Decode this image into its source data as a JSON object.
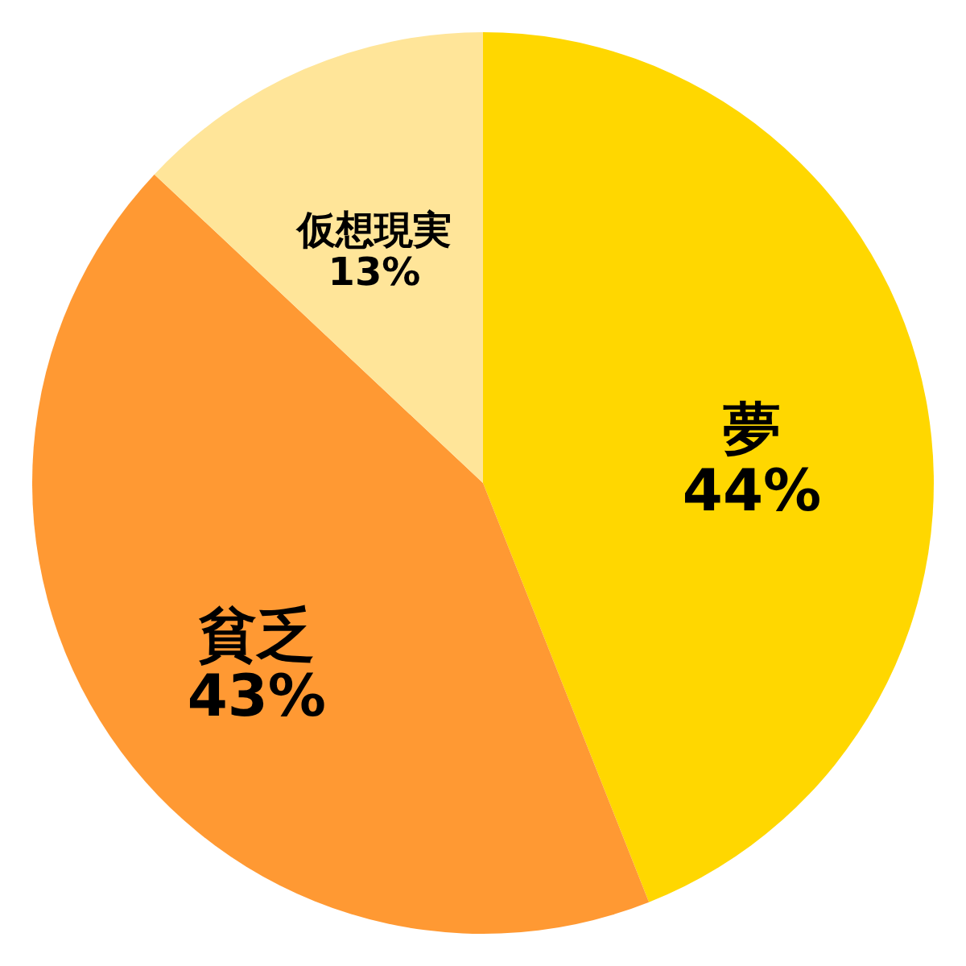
{
  "chart_data": {
    "type": "pie",
    "categories": [
      "夢",
      "貧乏",
      "仮想現実"
    ],
    "values": [
      44,
      43,
      13
    ],
    "colors": [
      "#ffd700",
      "#ff9933",
      "#ffe599"
    ],
    "value_labels": [
      "44%",
      "43%",
      "13%"
    ]
  }
}
